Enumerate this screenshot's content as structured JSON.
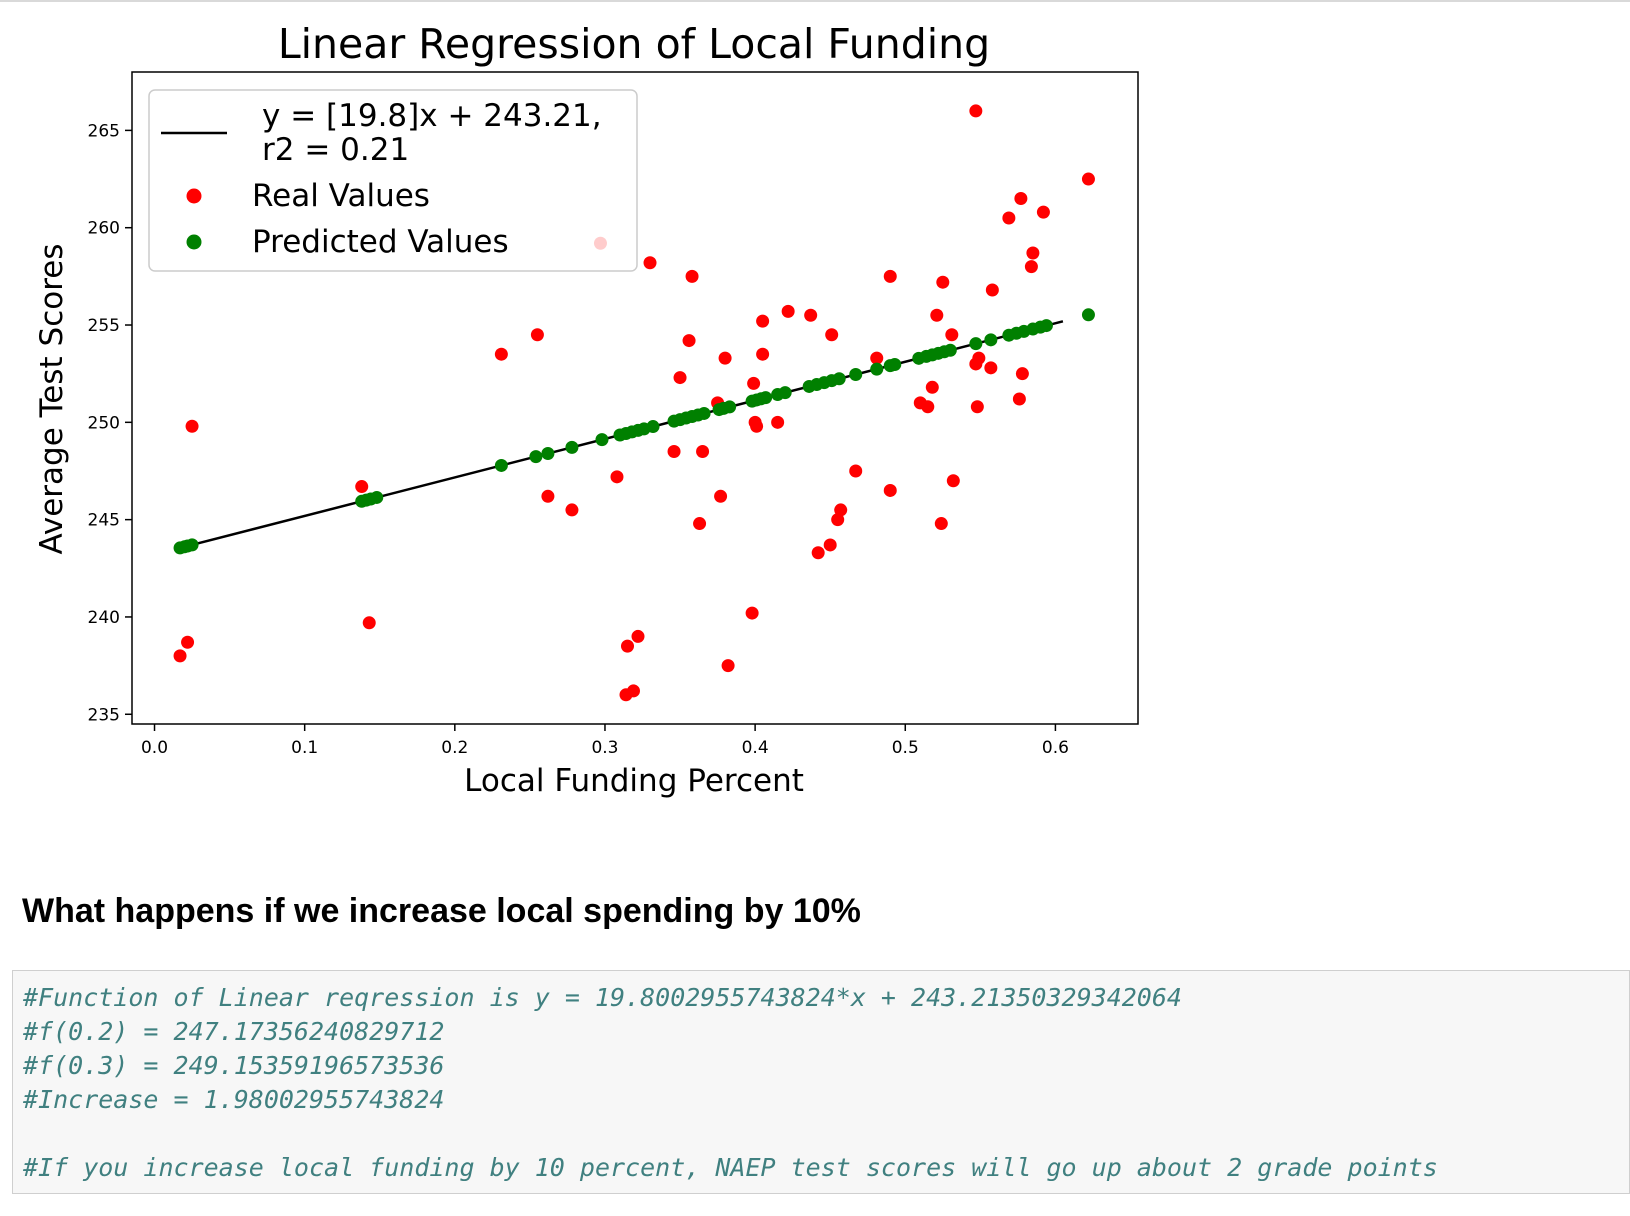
{
  "chart_data": {
    "type": "scatter",
    "title": "Linear Regression of Local Funding",
    "xlabel": "Local Funding Percent",
    "ylabel": "Average Test Scores",
    "xlim": [
      -0.015,
      0.655
    ],
    "ylim": [
      234.5,
      268
    ],
    "xticks": [
      0.0,
      0.1,
      0.2,
      0.3,
      0.4,
      0.5,
      0.6
    ],
    "xtick_labels": [
      "0.0",
      "0.1",
      "0.2",
      "0.3",
      "0.4",
      "0.5",
      "0.6"
    ],
    "yticks": [
      235,
      240,
      245,
      250,
      255,
      260,
      265
    ],
    "ytick_labels": [
      "235",
      "240",
      "245",
      "250",
      "255",
      "260",
      "265"
    ],
    "grid": false,
    "legend_position": "top-left",
    "colors": {
      "line": "#000000",
      "real": "#ff0000",
      "predicted": "#008000",
      "frame": "#000000"
    },
    "legend": {
      "line_label": [
        "y = [19.8]x + 243.21,",
        "r2 = 0.21"
      ],
      "real_label": "Real Values",
      "predicted_label": "Predicted Values"
    },
    "regression_line": {
      "slope": 19.8,
      "intercept": 243.21,
      "x_range": [
        0.017,
        0.605
      ]
    },
    "series": [
      {
        "name": "Real Values",
        "points": [
          [
            0.017,
            238.0
          ],
          [
            0.022,
            238.7
          ],
          [
            0.025,
            249.8
          ],
          [
            0.138,
            246.7
          ],
          [
            0.143,
            239.7
          ],
          [
            0.231,
            253.5
          ],
          [
            0.255,
            254.5
          ],
          [
            0.262,
            246.2
          ],
          [
            0.278,
            245.5
          ],
          [
            0.297,
            259.2
          ],
          [
            0.308,
            247.2
          ],
          [
            0.314,
            236.0
          ],
          [
            0.315,
            238.5
          ],
          [
            0.319,
            236.2
          ],
          [
            0.322,
            239.0
          ],
          [
            0.33,
            258.2
          ],
          [
            0.346,
            248.5
          ],
          [
            0.35,
            252.3
          ],
          [
            0.356,
            254.2
          ],
          [
            0.358,
            257.5
          ],
          [
            0.363,
            244.8
          ],
          [
            0.365,
            248.5
          ],
          [
            0.375,
            251.0
          ],
          [
            0.377,
            246.2
          ],
          [
            0.38,
            253.3
          ],
          [
            0.382,
            237.5
          ],
          [
            0.398,
            240.2
          ],
          [
            0.399,
            252.0
          ],
          [
            0.4,
            250.0
          ],
          [
            0.401,
            249.8
          ],
          [
            0.405,
            253.5
          ],
          [
            0.405,
            255.2
          ],
          [
            0.415,
            250.0
          ],
          [
            0.422,
            255.7
          ],
          [
            0.437,
            255.5
          ],
          [
            0.442,
            243.3
          ],
          [
            0.45,
            243.7
          ],
          [
            0.451,
            254.5
          ],
          [
            0.455,
            245.0
          ],
          [
            0.457,
            245.5
          ],
          [
            0.467,
            247.5
          ],
          [
            0.481,
            253.3
          ],
          [
            0.49,
            246.5
          ],
          [
            0.49,
            257.5
          ],
          [
            0.51,
            251.0
          ],
          [
            0.515,
            250.8
          ],
          [
            0.518,
            251.8
          ],
          [
            0.521,
            255.5
          ],
          [
            0.524,
            244.8
          ],
          [
            0.525,
            257.2
          ],
          [
            0.531,
            254.5
          ],
          [
            0.532,
            247.0
          ],
          [
            0.547,
            266.0
          ],
          [
            0.547,
            253.0
          ],
          [
            0.548,
            250.8
          ],
          [
            0.549,
            253.3
          ],
          [
            0.557,
            252.8
          ],
          [
            0.558,
            256.8
          ],
          [
            0.569,
            260.5
          ],
          [
            0.576,
            251.2
          ],
          [
            0.577,
            261.5
          ],
          [
            0.578,
            252.5
          ],
          [
            0.584,
            258.0
          ],
          [
            0.585,
            258.7
          ],
          [
            0.592,
            260.8
          ],
          [
            0.622,
            262.5
          ]
        ]
      },
      {
        "name": "Predicted Values",
        "x": [
          0.017,
          0.02,
          0.022,
          0.025,
          0.138,
          0.141,
          0.144,
          0.148,
          0.231,
          0.254,
          0.262,
          0.278,
          0.298,
          0.31,
          0.314,
          0.318,
          0.322,
          0.326,
          0.332,
          0.346,
          0.35,
          0.354,
          0.358,
          0.362,
          0.366,
          0.376,
          0.379,
          0.383,
          0.398,
          0.401,
          0.404,
          0.407,
          0.415,
          0.42,
          0.436,
          0.441,
          0.446,
          0.451,
          0.456,
          0.467,
          0.481,
          0.49,
          0.493,
          0.509,
          0.514,
          0.518,
          0.522,
          0.526,
          0.53,
          0.547,
          0.557,
          0.569,
          0.574,
          0.579,
          0.585,
          0.59,
          0.594,
          0.622
        ]
      }
    ]
  },
  "markdown": {
    "heading": "What happens if we increase local spending by 10%"
  },
  "code": {
    "lines": [
      "#Function of Linear reqression is y = 19.8002955743824*x + 243.21350329342064",
      "#f(0.2) = 247.17356240829712",
      "#f(0.3) = 249.15359196573536",
      "#Increase = 1.98002955743824",
      "",
      "#If you increase local funding by 10 percent, NAEP test scores will go up about 2 grade points"
    ]
  }
}
